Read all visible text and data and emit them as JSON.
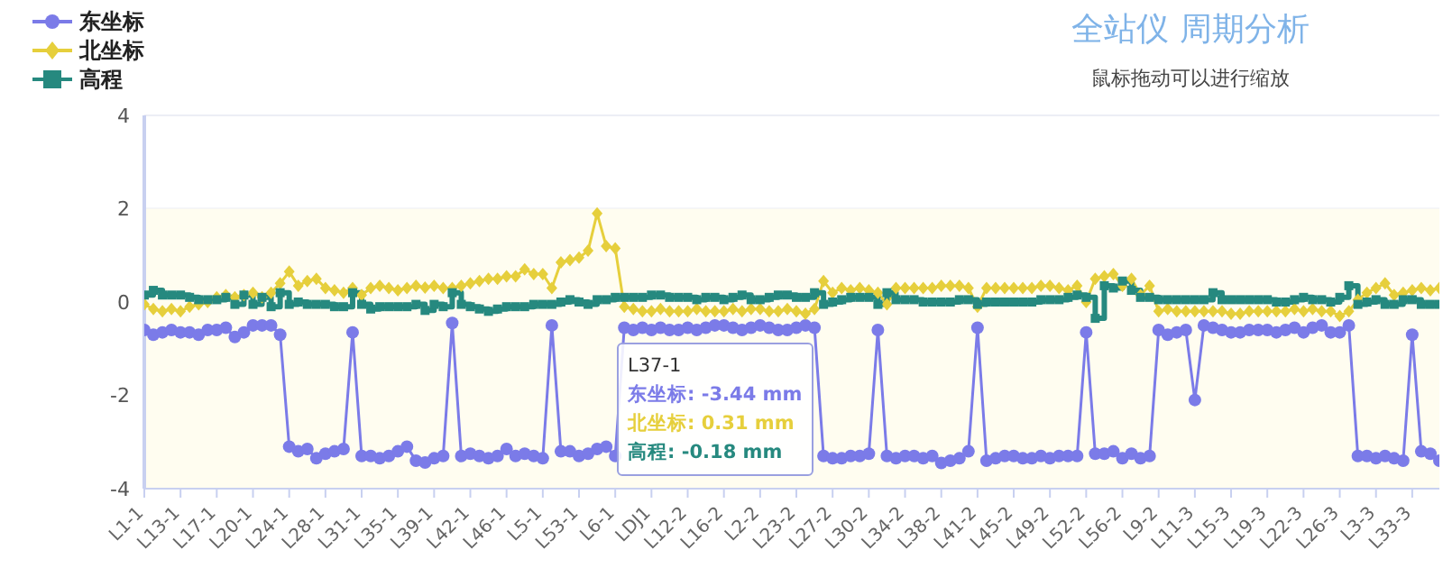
{
  "chart_data": {
    "type": "line",
    "title": "全站仪 周期分析",
    "subtitle": "鼠标拖动可以进行缩放",
    "categories": [
      "L1-1",
      null,
      null,
      null,
      "L13-1",
      null,
      null,
      null,
      "L17-1",
      null,
      null,
      null,
      "L20-1",
      null,
      null,
      null,
      "L24-1",
      null,
      null,
      null,
      "L28-1",
      null,
      null,
      null,
      "L31-1",
      null,
      null,
      null,
      "L35-1",
      null,
      null,
      null,
      "L39-1",
      null,
      null,
      null,
      "L42-1",
      null,
      null,
      null,
      "L46-1",
      null,
      null,
      null,
      "L5-1",
      null,
      null,
      null,
      "L53-1",
      null,
      null,
      null,
      "L6-1",
      null,
      null,
      null,
      "LDJ1",
      null,
      null,
      null,
      "L12-2",
      null,
      null,
      null,
      "L16-2",
      null,
      null,
      null,
      "L2-2",
      null,
      null,
      null,
      "L23-2",
      null,
      null,
      null,
      "L27-2",
      null,
      null,
      null,
      "L30-2",
      null,
      null,
      null,
      "L34-2",
      null,
      null,
      null,
      "L38-2",
      null,
      null,
      null,
      "L41-2",
      null,
      null,
      null,
      "L45-2",
      null,
      null,
      null,
      "L49-2",
      null,
      null,
      null,
      "L52-2",
      null,
      null,
      null,
      "L56-2",
      null,
      null,
      null,
      "L9-2",
      null,
      null,
      null,
      "L11-3",
      null,
      null,
      null,
      "L15-3",
      null,
      null,
      null,
      "L19-3",
      null,
      null,
      null,
      "L22-3",
      null,
      null,
      null,
      "L26-3",
      null,
      null,
      null,
      "L3-3",
      null,
      null,
      null,
      "L33-3",
      null,
      null,
      null
    ],
    "series": [
      {
        "name": "东坐标",
        "type": "line",
        "marker": "circle",
        "color": "#7b7be8",
        "values": [
          -0.6,
          -0.7,
          -0.65,
          -0.6,
          -0.65,
          -0.65,
          -0.7,
          -0.6,
          -0.6,
          -0.55,
          -0.75,
          -0.65,
          -0.5,
          -0.5,
          -0.5,
          -0.7,
          -3.1,
          -3.2,
          -3.15,
          -3.35,
          -3.25,
          -3.2,
          -3.15,
          -0.65,
          -3.3,
          -3.3,
          -3.35,
          -3.3,
          -3.2,
          -3.1,
          -3.4,
          -3.44,
          -3.35,
          -3.3,
          -0.45,
          -3.3,
          -3.25,
          -3.3,
          -3.35,
          -3.3,
          -3.15,
          -3.3,
          -3.25,
          -3.3,
          -3.35,
          -0.5,
          -3.2,
          -3.2,
          -3.3,
          -3.25,
          -3.15,
          -3.1,
          -3.3,
          -0.55,
          -0.6,
          -0.55,
          -0.6,
          -0.55,
          -0.6,
          -0.6,
          -0.55,
          -0.6,
          -0.55,
          -0.5,
          -0.5,
          -0.55,
          -0.6,
          -0.55,
          -0.5,
          -0.55,
          -0.6,
          -0.6,
          -0.55,
          -0.5,
          -0.55,
          -3.3,
          -3.35,
          -3.35,
          -3.3,
          -3.3,
          -3.25,
          -0.6,
          -3.3,
          -3.35,
          -3.3,
          -3.3,
          -3.35,
          -3.3,
          -3.45,
          -3.4,
          -3.35,
          -3.2,
          -0.55,
          -3.4,
          -3.35,
          -3.3,
          -3.3,
          -3.35,
          -3.35,
          -3.3,
          -3.35,
          -3.3,
          -3.3,
          -3.3,
          -0.65,
          -3.25,
          -3.25,
          -3.2,
          -3.35,
          -3.25,
          -3.35,
          -3.3,
          -0.6,
          -0.7,
          -0.65,
          -0.6,
          -2.1,
          -0.5,
          -0.55,
          -0.6,
          -0.65,
          -0.65,
          -0.6,
          -0.6,
          -0.6,
          -0.65,
          -0.6,
          -0.55,
          -0.65,
          -0.55,
          -0.5,
          -0.65,
          -0.65,
          -0.5,
          -3.3,
          -3.3,
          -3.35,
          -3.3,
          -3.35,
          -3.4,
          -0.7,
          -3.2,
          -3.25,
          -3.4
        ]
      },
      {
        "name": "北坐标",
        "type": "line",
        "marker": "diamond",
        "color": "#e6cf3c",
        "values": [
          -0.05,
          -0.15,
          -0.2,
          -0.15,
          -0.2,
          -0.1,
          -0.05,
          0,
          0.1,
          0.15,
          0.1,
          0.15,
          0.2,
          0.1,
          0.2,
          0.4,
          0.65,
          0.35,
          0.45,
          0.5,
          0.3,
          0.25,
          0.2,
          0.3,
          0.15,
          0.3,
          0.35,
          0.3,
          0.25,
          0.3,
          0.35,
          0.31,
          0.35,
          0.3,
          0.3,
          0.35,
          0.4,
          0.45,
          0.5,
          0.5,
          0.55,
          0.55,
          0.7,
          0.6,
          0.6,
          0.3,
          0.85,
          0.9,
          0.95,
          1.1,
          1.9,
          1.2,
          1.15,
          -0.1,
          -0.15,
          -0.2,
          -0.2,
          -0.15,
          -0.2,
          -0.2,
          -0.2,
          -0.15,
          -0.2,
          -0.2,
          -0.2,
          -0.15,
          -0.2,
          -0.15,
          -0.15,
          -0.2,
          -0.2,
          -0.15,
          -0.2,
          -0.25,
          -0.15,
          0.45,
          0.2,
          0.3,
          0.25,
          0.3,
          0.25,
          0.2,
          -0.05,
          0.3,
          0.3,
          0.3,
          0.3,
          0.3,
          0.35,
          0.35,
          0.35,
          0.3,
          -0.1,
          0.3,
          0.3,
          0.3,
          0.3,
          0.3,
          0.3,
          0.35,
          0.35,
          0.3,
          0.25,
          0.35,
          0,
          0.5,
          0.55,
          0.6,
          0.35,
          0.5,
          0.15,
          0.35,
          -0.2,
          -0.15,
          -0.2,
          -0.2,
          -0.2,
          -0.2,
          -0.2,
          -0.2,
          -0.25,
          -0.25,
          -0.2,
          -0.2,
          -0.2,
          -0.2,
          -0.2,
          -0.15,
          -0.2,
          -0.15,
          -0.2,
          -0.2,
          -0.3,
          -0.2,
          0.05,
          0.2,
          0.3,
          0.4,
          0.15,
          0.2,
          0.25,
          0.3,
          0.25,
          0.3
        ]
      },
      {
        "name": "高程",
        "type": "step",
        "marker": "square",
        "color": "#26897f",
        "values": [
          0.15,
          0.25,
          0.15,
          0.15,
          0.15,
          0.1,
          0.05,
          0.05,
          0.05,
          0.1,
          -0.05,
          0.15,
          -0.05,
          0.1,
          -0.1,
          0.2,
          -0.05,
          0,
          -0.05,
          -0.05,
          -0.05,
          -0.1,
          -0.1,
          0.2,
          -0.05,
          -0.15,
          -0.1,
          -0.1,
          -0.1,
          -0.1,
          -0.05,
          -0.18,
          -0.05,
          -0.1,
          0.2,
          -0.05,
          -0.1,
          -0.15,
          -0.2,
          -0.15,
          -0.1,
          -0.1,
          -0.1,
          -0.05,
          -0.05,
          -0.05,
          0,
          0.05,
          0,
          -0.05,
          0.05,
          0.05,
          0.1,
          0.1,
          0.1,
          0.1,
          0.15,
          0.15,
          0.1,
          0.1,
          0.1,
          0.05,
          0.1,
          0.1,
          0.05,
          0.1,
          0.15,
          0.05,
          0.05,
          0.1,
          0.15,
          0.15,
          0.1,
          0.1,
          0.2,
          -0.05,
          0,
          0.05,
          0.1,
          0.1,
          0.1,
          -0.05,
          0.2,
          0.05,
          0.05,
          0.05,
          0,
          0,
          0,
          0,
          0.05,
          0.05,
          -0.05,
          0,
          0,
          0,
          0,
          0,
          0,
          0.05,
          0.05,
          0.05,
          0.1,
          0.15,
          0.1,
          -0.35,
          0.35,
          0.3,
          0.45,
          0.25,
          0.1,
          0.1,
          0.05,
          0.05,
          0.05,
          0.05,
          0.05,
          0.05,
          0.2,
          0.05,
          0.05,
          0.05,
          0.05,
          0.05,
          0.05,
          0,
          0,
          0.05,
          0.1,
          0.05,
          0.05,
          0,
          0.1,
          0.35,
          -0.05,
          0,
          0.05,
          -0.05,
          -0.05,
          0.05,
          0.05,
          -0.05,
          -0.05,
          -0.05
        ]
      }
    ],
    "ylim": [
      -4,
      4
    ],
    "yticks": [
      -4,
      -2,
      0,
      2,
      4
    ],
    "grid": "y",
    "legend": "top left",
    "bands": [
      {
        "axis": "y",
        "from": -4,
        "to": 2,
        "color": "#fffdf0"
      }
    ],
    "annotations": [
      "L37-1",
      "东坐标: -3.44 mm",
      "北坐标: 0.31 mm",
      "高程: -0.18 mm"
    ]
  }
}
